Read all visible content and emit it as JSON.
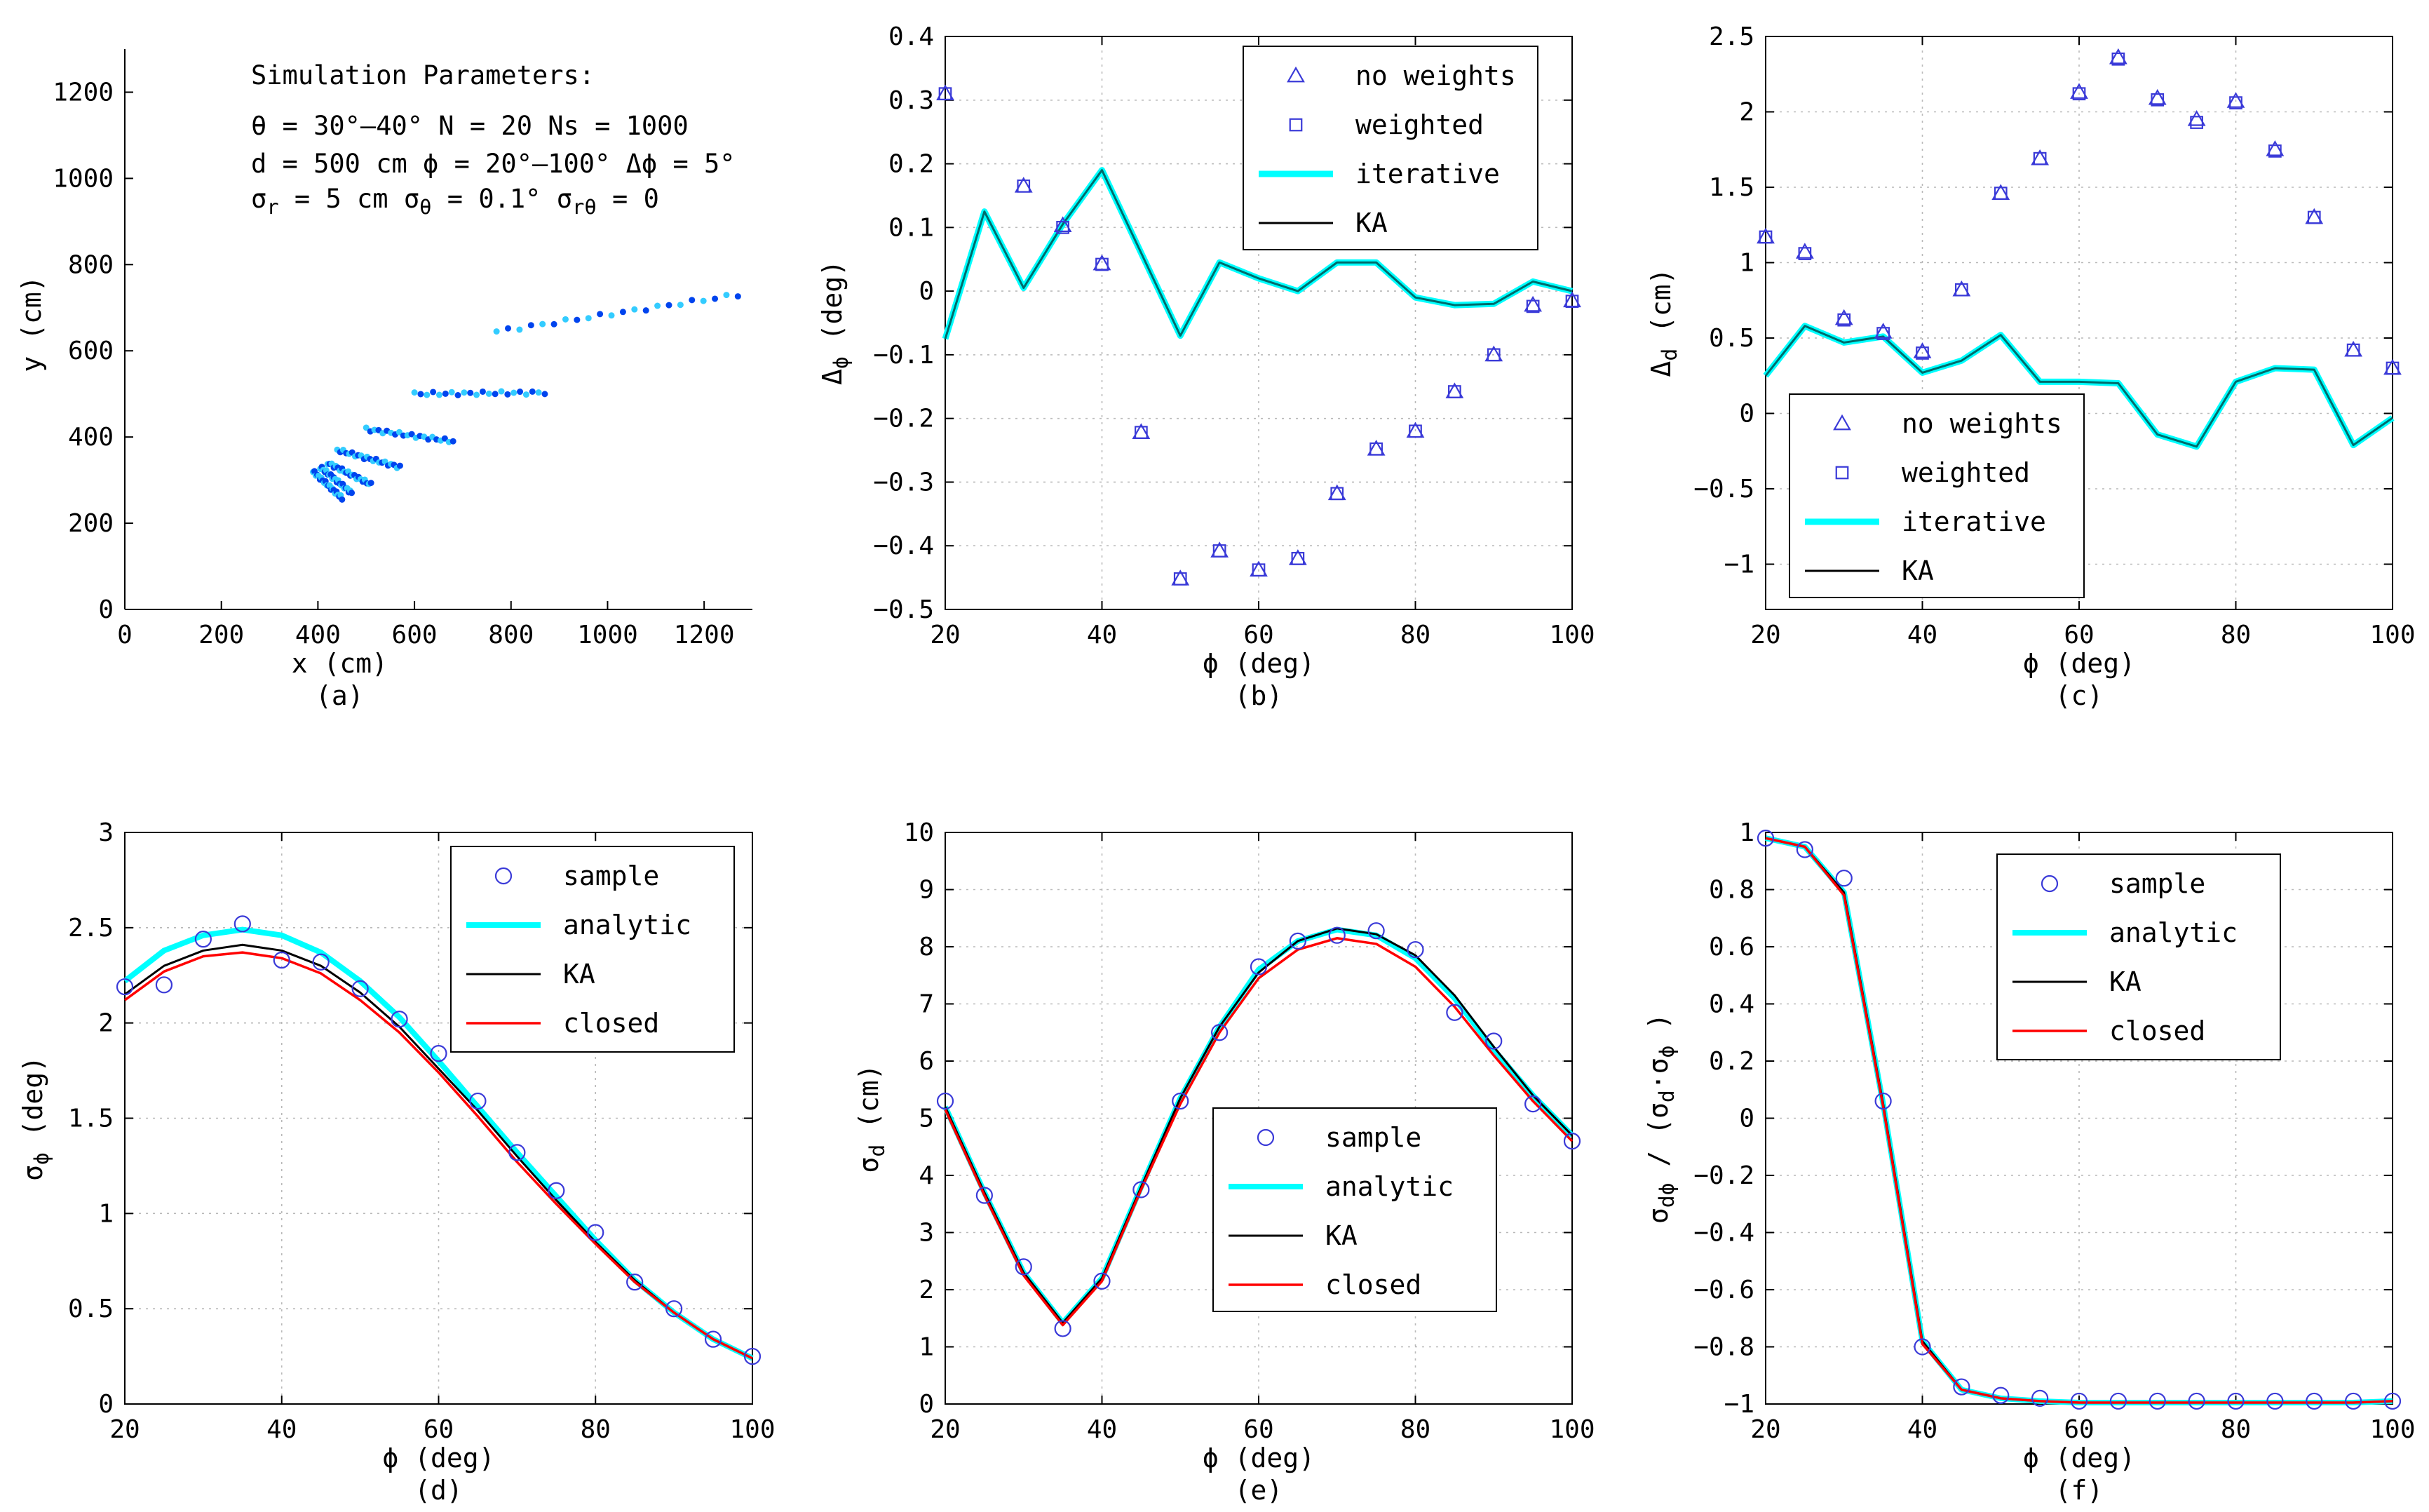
{
  "figure": {
    "colors": {
      "axis": "#000000",
      "grid": "#b9b9b9",
      "marker": "#3a3ad8",
      "cyan": "#00ffff",
      "black": "#000000",
      "red": "#ff0000",
      "iter_line": "#007a7a",
      "ka_combo": "#006a6a",
      "scatter_dark": "#0044ee",
      "scatter_light": "#33ccff"
    }
  },
  "chart_data": [
    {
      "id": "a",
      "type": "scatter",
      "caption": "(a)",
      "xlabel": "x (cm)",
      "ylabel": "y (cm)",
      "xlim": [
        0,
        1300
      ],
      "ylim": [
        0,
        1300
      ],
      "xticks": [
        0,
        200,
        400,
        600,
        800,
        1000,
        1200
      ],
      "yticks": [
        0,
        200,
        400,
        600,
        800,
        1000,
        1200
      ],
      "grid": false,
      "params_title": "Simulation Parameters:",
      "params_lines": [
        "θ = 30°–40°   N = 20   Ns = 1000",
        "d = 500 cm   ϕ = 20°–100°  Δϕ = 5°",
        "σr = 5 cm   σθ = 0.1°   σrθ = 0"
      ],
      "segments": [
        {
          "x1": 770,
          "y1": 645,
          "x2": 1270,
          "y2": 730
        },
        {
          "x1": 600,
          "y1": 500,
          "x2": 870,
          "y2": 503
        },
        {
          "x1": 500,
          "y1": 418,
          "x2": 680,
          "y2": 390
        },
        {
          "x1": 440,
          "y1": 370,
          "x2": 570,
          "y2": 330
        },
        {
          "x1": 420,
          "y1": 340,
          "x2": 510,
          "y2": 290
        },
        {
          "x1": 405,
          "y1": 330,
          "x2": 470,
          "y2": 270
        },
        {
          "x1": 390,
          "y1": 320,
          "x2": 450,
          "y2": 258
        }
      ]
    },
    {
      "id": "b",
      "type": "line+scatter",
      "caption": "(b)",
      "xlabel": "ϕ (deg)",
      "ylabel": "Δϕ (deg)",
      "xlim": [
        20,
        100
      ],
      "ylim": [
        -0.5,
        0.4
      ],
      "xticks": [
        20,
        40,
        60,
        80,
        100
      ],
      "yticks": [
        -0.5,
        -0.4,
        -0.3,
        -0.2,
        -0.1,
        0,
        0.1,
        0.2,
        0.3,
        0.4
      ],
      "ytick_labels": [
        "−0.5",
        "−0.4",
        "−0.3",
        "−0.2",
        "−0.1",
        "0",
        "0.1",
        "0.2",
        "0.3",
        "0.4"
      ],
      "grid": true,
      "legend": [
        "no weights",
        "weighted",
        "iterative",
        "KA"
      ],
      "x": [
        20,
        25,
        30,
        35,
        40,
        45,
        50,
        55,
        60,
        65,
        70,
        75,
        80,
        85,
        90,
        95,
        100
      ],
      "series": [
        {
          "name": "no weights",
          "marker": "triangle",
          "values": [
            0.31,
            null,
            0.165,
            0.103,
            0.043,
            -0.222,
            -0.452,
            -0.408,
            -0.438,
            -0.42,
            -0.318,
            -0.248,
            -0.22,
            -0.158,
            -0.1,
            -0.022,
            -0.015
          ]
        },
        {
          "name": "weighted",
          "marker": "square",
          "values": [
            0.31,
            null,
            0.165,
            0.1,
            0.042,
            -0.222,
            -0.452,
            -0.408,
            -0.438,
            -0.42,
            -0.318,
            -0.248,
            -0.22,
            -0.158,
            -0.1,
            -0.024,
            -0.016
          ]
        },
        {
          "name": "iterative",
          "style": "line",
          "values": [
            -0.075,
            0.125,
            0.005,
            0.105,
            0.19,
            0.06,
            -0.07,
            0.045,
            0.02,
            0.0,
            0.045,
            0.045,
            -0.01,
            -0.022,
            -0.02,
            0.015,
            0.0
          ]
        },
        {
          "name": "KA",
          "style": "line",
          "values": [
            -0.075,
            0.125,
            0.005,
            0.105,
            0.19,
            0.06,
            -0.07,
            0.045,
            0.02,
            0.0,
            0.045,
            0.045,
            -0.01,
            -0.022,
            -0.02,
            0.015,
            0.0
          ]
        }
      ]
    },
    {
      "id": "c",
      "type": "line+scatter",
      "caption": "(c)",
      "xlabel": "ϕ (deg)",
      "ylabel": "Δd (cm)",
      "xlim": [
        20,
        100
      ],
      "ylim": [
        -1.3,
        2.5
      ],
      "xticks": [
        20,
        40,
        60,
        80,
        100
      ],
      "yticks": [
        -1,
        -0.5,
        0,
        0.5,
        1,
        1.5,
        2,
        2.5
      ],
      "ytick_labels": [
        "−1",
        "−0.5",
        "0",
        "0.5",
        "1",
        "1.5",
        "2",
        "2.5"
      ],
      "grid": true,
      "legend": [
        "no weights",
        "weighted",
        "iterative",
        "KA"
      ],
      "x": [
        20,
        25,
        30,
        35,
        40,
        45,
        50,
        55,
        60,
        65,
        70,
        75,
        80,
        85,
        90,
        95,
        100
      ],
      "series": [
        {
          "name": "no weights",
          "marker": "triangle",
          "values": [
            1.17,
            1.07,
            0.63,
            0.54,
            0.41,
            0.82,
            1.46,
            1.69,
            2.13,
            2.36,
            2.09,
            1.95,
            2.07,
            1.75,
            1.3,
            0.42,
            0.3
          ]
        },
        {
          "name": "weighted",
          "marker": "square",
          "values": [
            1.17,
            1.06,
            0.62,
            0.53,
            0.4,
            0.82,
            1.46,
            1.69,
            2.12,
            2.35,
            2.08,
            1.93,
            2.06,
            1.74,
            1.3,
            0.42,
            0.3
          ]
        },
        {
          "name": "iterative",
          "style": "line",
          "values": [
            0.25,
            0.58,
            0.47,
            0.51,
            0.27,
            0.35,
            0.52,
            0.21,
            0.21,
            0.2,
            -0.14,
            -0.22,
            0.21,
            0.3,
            0.29,
            -0.21,
            -0.03
          ]
        },
        {
          "name": "KA",
          "style": "line",
          "values": [
            0.25,
            0.58,
            0.47,
            0.51,
            0.27,
            0.35,
            0.52,
            0.21,
            0.21,
            0.2,
            -0.14,
            -0.22,
            0.21,
            0.3,
            0.29,
            -0.21,
            -0.03
          ]
        }
      ]
    },
    {
      "id": "d",
      "type": "line+scatter",
      "caption": "(d)",
      "xlabel": "ϕ (deg)",
      "ylabel": "σϕ (deg)",
      "xlim": [
        20,
        100
      ],
      "ylim": [
        0,
        3
      ],
      "xticks": [
        20,
        40,
        60,
        80,
        100
      ],
      "yticks": [
        0,
        0.5,
        1,
        1.5,
        2,
        2.5,
        3
      ],
      "ytick_labels": [
        "0",
        "0.5",
        "1",
        "1.5",
        "2",
        "2.5",
        "3"
      ],
      "grid": true,
      "legend": [
        "sample",
        "analytic",
        "KA",
        "closed"
      ],
      "x": [
        20,
        25,
        30,
        35,
        40,
        45,
        50,
        55,
        60,
        65,
        70,
        75,
        80,
        85,
        90,
        95,
        100
      ],
      "series": [
        {
          "name": "sample",
          "marker": "circle",
          "values": [
            2.19,
            2.2,
            2.44,
            2.52,
            2.33,
            2.32,
            2.18,
            2.02,
            1.84,
            1.59,
            1.32,
            1.12,
            0.9,
            0.64,
            0.5,
            0.34,
            0.25
          ]
        },
        {
          "name": "analytic",
          "style": "line",
          "values": [
            2.22,
            2.38,
            2.46,
            2.49,
            2.46,
            2.37,
            2.22,
            2.03,
            1.8,
            1.56,
            1.32,
            1.09,
            0.86,
            0.65,
            0.48,
            0.34,
            0.24
          ]
        },
        {
          "name": "KA",
          "style": "line",
          "values": [
            2.15,
            2.3,
            2.38,
            2.41,
            2.38,
            2.3,
            2.16,
            1.98,
            1.76,
            1.54,
            1.3,
            1.07,
            0.85,
            0.65,
            0.48,
            0.34,
            0.24
          ]
        },
        {
          "name": "closed",
          "style": "line",
          "values": [
            2.12,
            2.27,
            2.35,
            2.37,
            2.34,
            2.26,
            2.12,
            1.95,
            1.74,
            1.51,
            1.27,
            1.05,
            0.84,
            0.64,
            0.48,
            0.34,
            0.24
          ]
        }
      ]
    },
    {
      "id": "e",
      "type": "line+scatter",
      "caption": "(e)",
      "xlabel": "ϕ (deg)",
      "ylabel": "σd (cm)",
      "xlim": [
        20,
        100
      ],
      "ylim": [
        0,
        10
      ],
      "xticks": [
        20,
        40,
        60,
        80,
        100
      ],
      "yticks": [
        0,
        1,
        2,
        3,
        4,
        5,
        6,
        7,
        8,
        9,
        10
      ],
      "ytick_labels": [
        "0",
        "1",
        "2",
        "3",
        "4",
        "5",
        "6",
        "7",
        "8",
        "9",
        "10"
      ],
      "grid": true,
      "legend": [
        "sample",
        "analytic",
        "KA",
        "closed"
      ],
      "x": [
        20,
        25,
        30,
        35,
        40,
        45,
        50,
        55,
        60,
        65,
        70,
        75,
        80,
        85,
        90,
        95,
        100
      ],
      "series": [
        {
          "name": "sample",
          "marker": "circle",
          "values": [
            5.3,
            3.65,
            2.4,
            1.32,
            2.15,
            3.75,
            5.3,
            6.5,
            7.65,
            8.1,
            8.2,
            8.28,
            7.95,
            6.85,
            6.35,
            5.25,
            4.6
          ]
        },
        {
          "name": "analytic",
          "style": "line",
          "values": [
            5.2,
            3.7,
            2.3,
            1.42,
            2.2,
            3.8,
            5.35,
            6.6,
            7.6,
            8.1,
            8.3,
            8.2,
            7.8,
            7.1,
            6.2,
            5.4,
            4.7
          ]
        },
        {
          "name": "KA",
          "style": "line",
          "values": [
            5.2,
            3.7,
            2.3,
            1.42,
            2.2,
            3.8,
            5.35,
            6.6,
            7.55,
            8.1,
            8.32,
            8.22,
            7.85,
            7.15,
            6.25,
            5.4,
            4.7
          ]
        },
        {
          "name": "closed",
          "style": "line",
          "values": [
            5.15,
            3.65,
            2.25,
            1.38,
            2.15,
            3.75,
            5.25,
            6.5,
            7.45,
            7.95,
            8.15,
            8.05,
            7.65,
            6.95,
            6.1,
            5.3,
            4.6
          ]
        }
      ]
    },
    {
      "id": "f",
      "type": "line+scatter",
      "caption": "(f)",
      "xlabel": "ϕ (deg)",
      "ylabel": "σdϕ / (σd·σϕ )",
      "xlim": [
        20,
        100
      ],
      "ylim": [
        -1,
        1
      ],
      "xticks": [
        20,
        40,
        60,
        80,
        100
      ],
      "yticks": [
        -1,
        -0.8,
        -0.6,
        -0.4,
        -0.2,
        0,
        0.2,
        0.4,
        0.6,
        0.8,
        1
      ],
      "ytick_labels": [
        "−1",
        "−0.8",
        "−0.6",
        "−0.4",
        "−0.2",
        "0",
        "0.2",
        "0.4",
        "0.6",
        "0.8",
        "1"
      ],
      "grid": true,
      "legend": [
        "sample",
        "analytic",
        "KA",
        "closed"
      ],
      "x": [
        20,
        25,
        30,
        35,
        40,
        45,
        50,
        55,
        60,
        65,
        70,
        75,
        80,
        85,
        90,
        95,
        100
      ],
      "series": [
        {
          "name": "sample",
          "marker": "circle",
          "values": [
            0.98,
            0.94,
            0.84,
            0.06,
            -0.8,
            -0.94,
            -0.97,
            -0.98,
            -0.99,
            -0.99,
            -0.99,
            -0.99,
            -0.99,
            -0.99,
            -0.99,
            -0.99,
            -0.99
          ]
        },
        {
          "name": "analytic",
          "style": "line",
          "values": [
            0.98,
            0.95,
            0.79,
            0.05,
            -0.78,
            -0.95,
            -0.98,
            -0.99,
            -0.995,
            -0.995,
            -0.995,
            -0.995,
            -0.995,
            -0.995,
            -0.995,
            -0.995,
            -0.99
          ]
        },
        {
          "name": "KA",
          "style": "line",
          "values": [
            0.98,
            0.95,
            0.79,
            0.05,
            -0.78,
            -0.95,
            -0.98,
            -0.99,
            -0.995,
            -0.995,
            -0.995,
            -0.995,
            -0.995,
            -0.995,
            -0.995,
            -0.995,
            -0.99
          ]
        },
        {
          "name": "closed",
          "style": "line",
          "values": [
            0.98,
            0.95,
            0.78,
            0.04,
            -0.79,
            -0.95,
            -0.98,
            -0.99,
            -0.995,
            -0.995,
            -0.995,
            -0.995,
            -0.995,
            -0.995,
            -0.995,
            -0.995,
            -0.99
          ]
        }
      ]
    }
  ]
}
